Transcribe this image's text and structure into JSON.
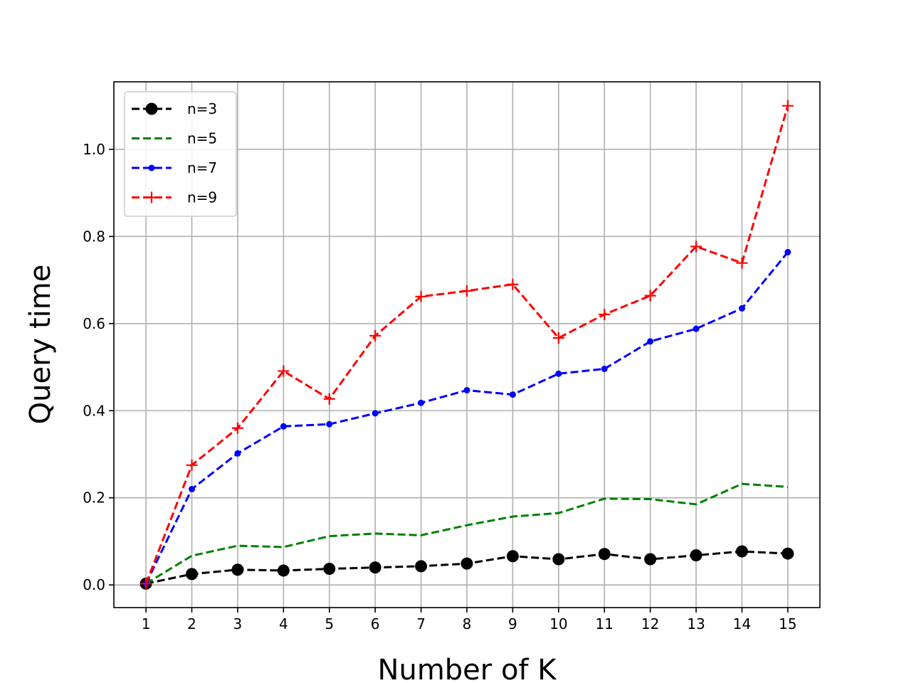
{
  "chart_data": {
    "type": "line",
    "xlabel": "Number of K",
    "ylabel": "Query time",
    "x": [
      1,
      2,
      3,
      4,
      5,
      6,
      7,
      8,
      9,
      10,
      11,
      12,
      13,
      14,
      15
    ],
    "xlim": [
      0.3,
      15.7
    ],
    "ylim": [
      -0.052,
      1.155
    ],
    "xticks": [
      "1",
      "2",
      "3",
      "4",
      "5",
      "6",
      "7",
      "8",
      "9",
      "10",
      "11",
      "12",
      "13",
      "14",
      "15"
    ],
    "yticks": [
      0.0,
      0.2,
      0.4,
      0.6,
      0.8,
      1.0
    ],
    "ytick_labels": [
      "0.0",
      "0.2",
      "0.4",
      "0.6",
      "0.8",
      "1.0"
    ],
    "grid": true,
    "legend_position": "top-left",
    "series": [
      {
        "name": "n=3",
        "color": "#000000",
        "marker": "circle-large",
        "values": [
          0.003,
          0.025,
          0.035,
          0.033,
          0.037,
          0.04,
          0.043,
          0.049,
          0.066,
          0.059,
          0.071,
          0.059,
          0.068,
          0.077,
          0.072
        ]
      },
      {
        "name": "n=5",
        "color": "#008000",
        "marker": "none",
        "values": [
          0.003,
          0.067,
          0.09,
          0.087,
          0.112,
          0.118,
          0.114,
          0.137,
          0.157,
          0.165,
          0.198,
          0.197,
          0.185,
          0.232,
          0.225
        ]
      },
      {
        "name": "n=7",
        "color": "#0000ff",
        "marker": "dot",
        "values": [
          0.003,
          0.22,
          0.302,
          0.364,
          0.369,
          0.394,
          0.418,
          0.447,
          0.437,
          0.485,
          0.496,
          0.559,
          0.588,
          0.635,
          0.764
        ]
      },
      {
        "name": "n=9",
        "color": "#ff0000",
        "marker": "plus",
        "values": [
          0.003,
          0.275,
          0.36,
          0.491,
          0.427,
          0.572,
          0.662,
          0.675,
          0.69,
          0.567,
          0.621,
          0.664,
          0.777,
          0.739,
          1.1
        ]
      }
    ]
  }
}
